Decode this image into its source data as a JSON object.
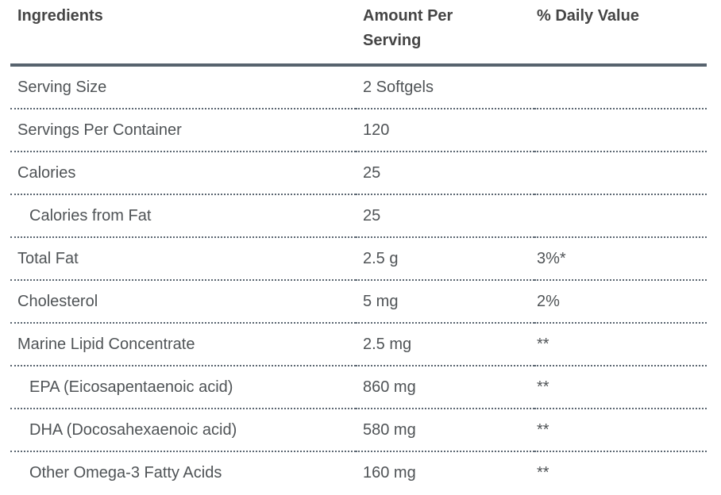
{
  "table": {
    "title_context": "supplement-facts",
    "columns": [
      {
        "label": "Ingredients"
      },
      {
        "label": "Amount Per Serving"
      },
      {
        "label": "% Daily Value"
      }
    ],
    "rows": [
      {
        "ingredient": "Serving Size",
        "amount": "2 Softgels",
        "daily_value": "",
        "indent": false
      },
      {
        "ingredient": "Servings Per Container",
        "amount": "120",
        "daily_value": "",
        "indent": false
      },
      {
        "ingredient": "Calories",
        "amount": "25",
        "daily_value": "",
        "indent": false
      },
      {
        "ingredient": "Calories from Fat",
        "amount": "25",
        "daily_value": "",
        "indent": true
      },
      {
        "ingredient": "Total Fat",
        "amount": "2.5 g",
        "daily_value": "3%*",
        "indent": false
      },
      {
        "ingredient": "Cholesterol",
        "amount": "5 mg",
        "daily_value": "2%",
        "indent": false
      },
      {
        "ingredient": "Marine Lipid Concentrate",
        "amount": "2.5 mg",
        "daily_value": "**",
        "indent": false
      },
      {
        "ingredient": "EPA (Eicosapentaenoic acid)",
        "amount": "860 mg",
        "daily_value": "**",
        "indent": true
      },
      {
        "ingredient": "DHA (Docosahexaenoic acid)",
        "amount": "580 mg",
        "daily_value": "**",
        "indent": true
      },
      {
        "ingredient": "Other Omega-3 Fatty Acids",
        "amount": "160 mg",
        "daily_value": "**",
        "indent": true
      }
    ],
    "colors": {
      "header_text": "#454545",
      "body_text": "#4f5356",
      "header_rule": "#57636e",
      "row_divider": "#5b6671",
      "background": "#ffffff"
    }
  }
}
